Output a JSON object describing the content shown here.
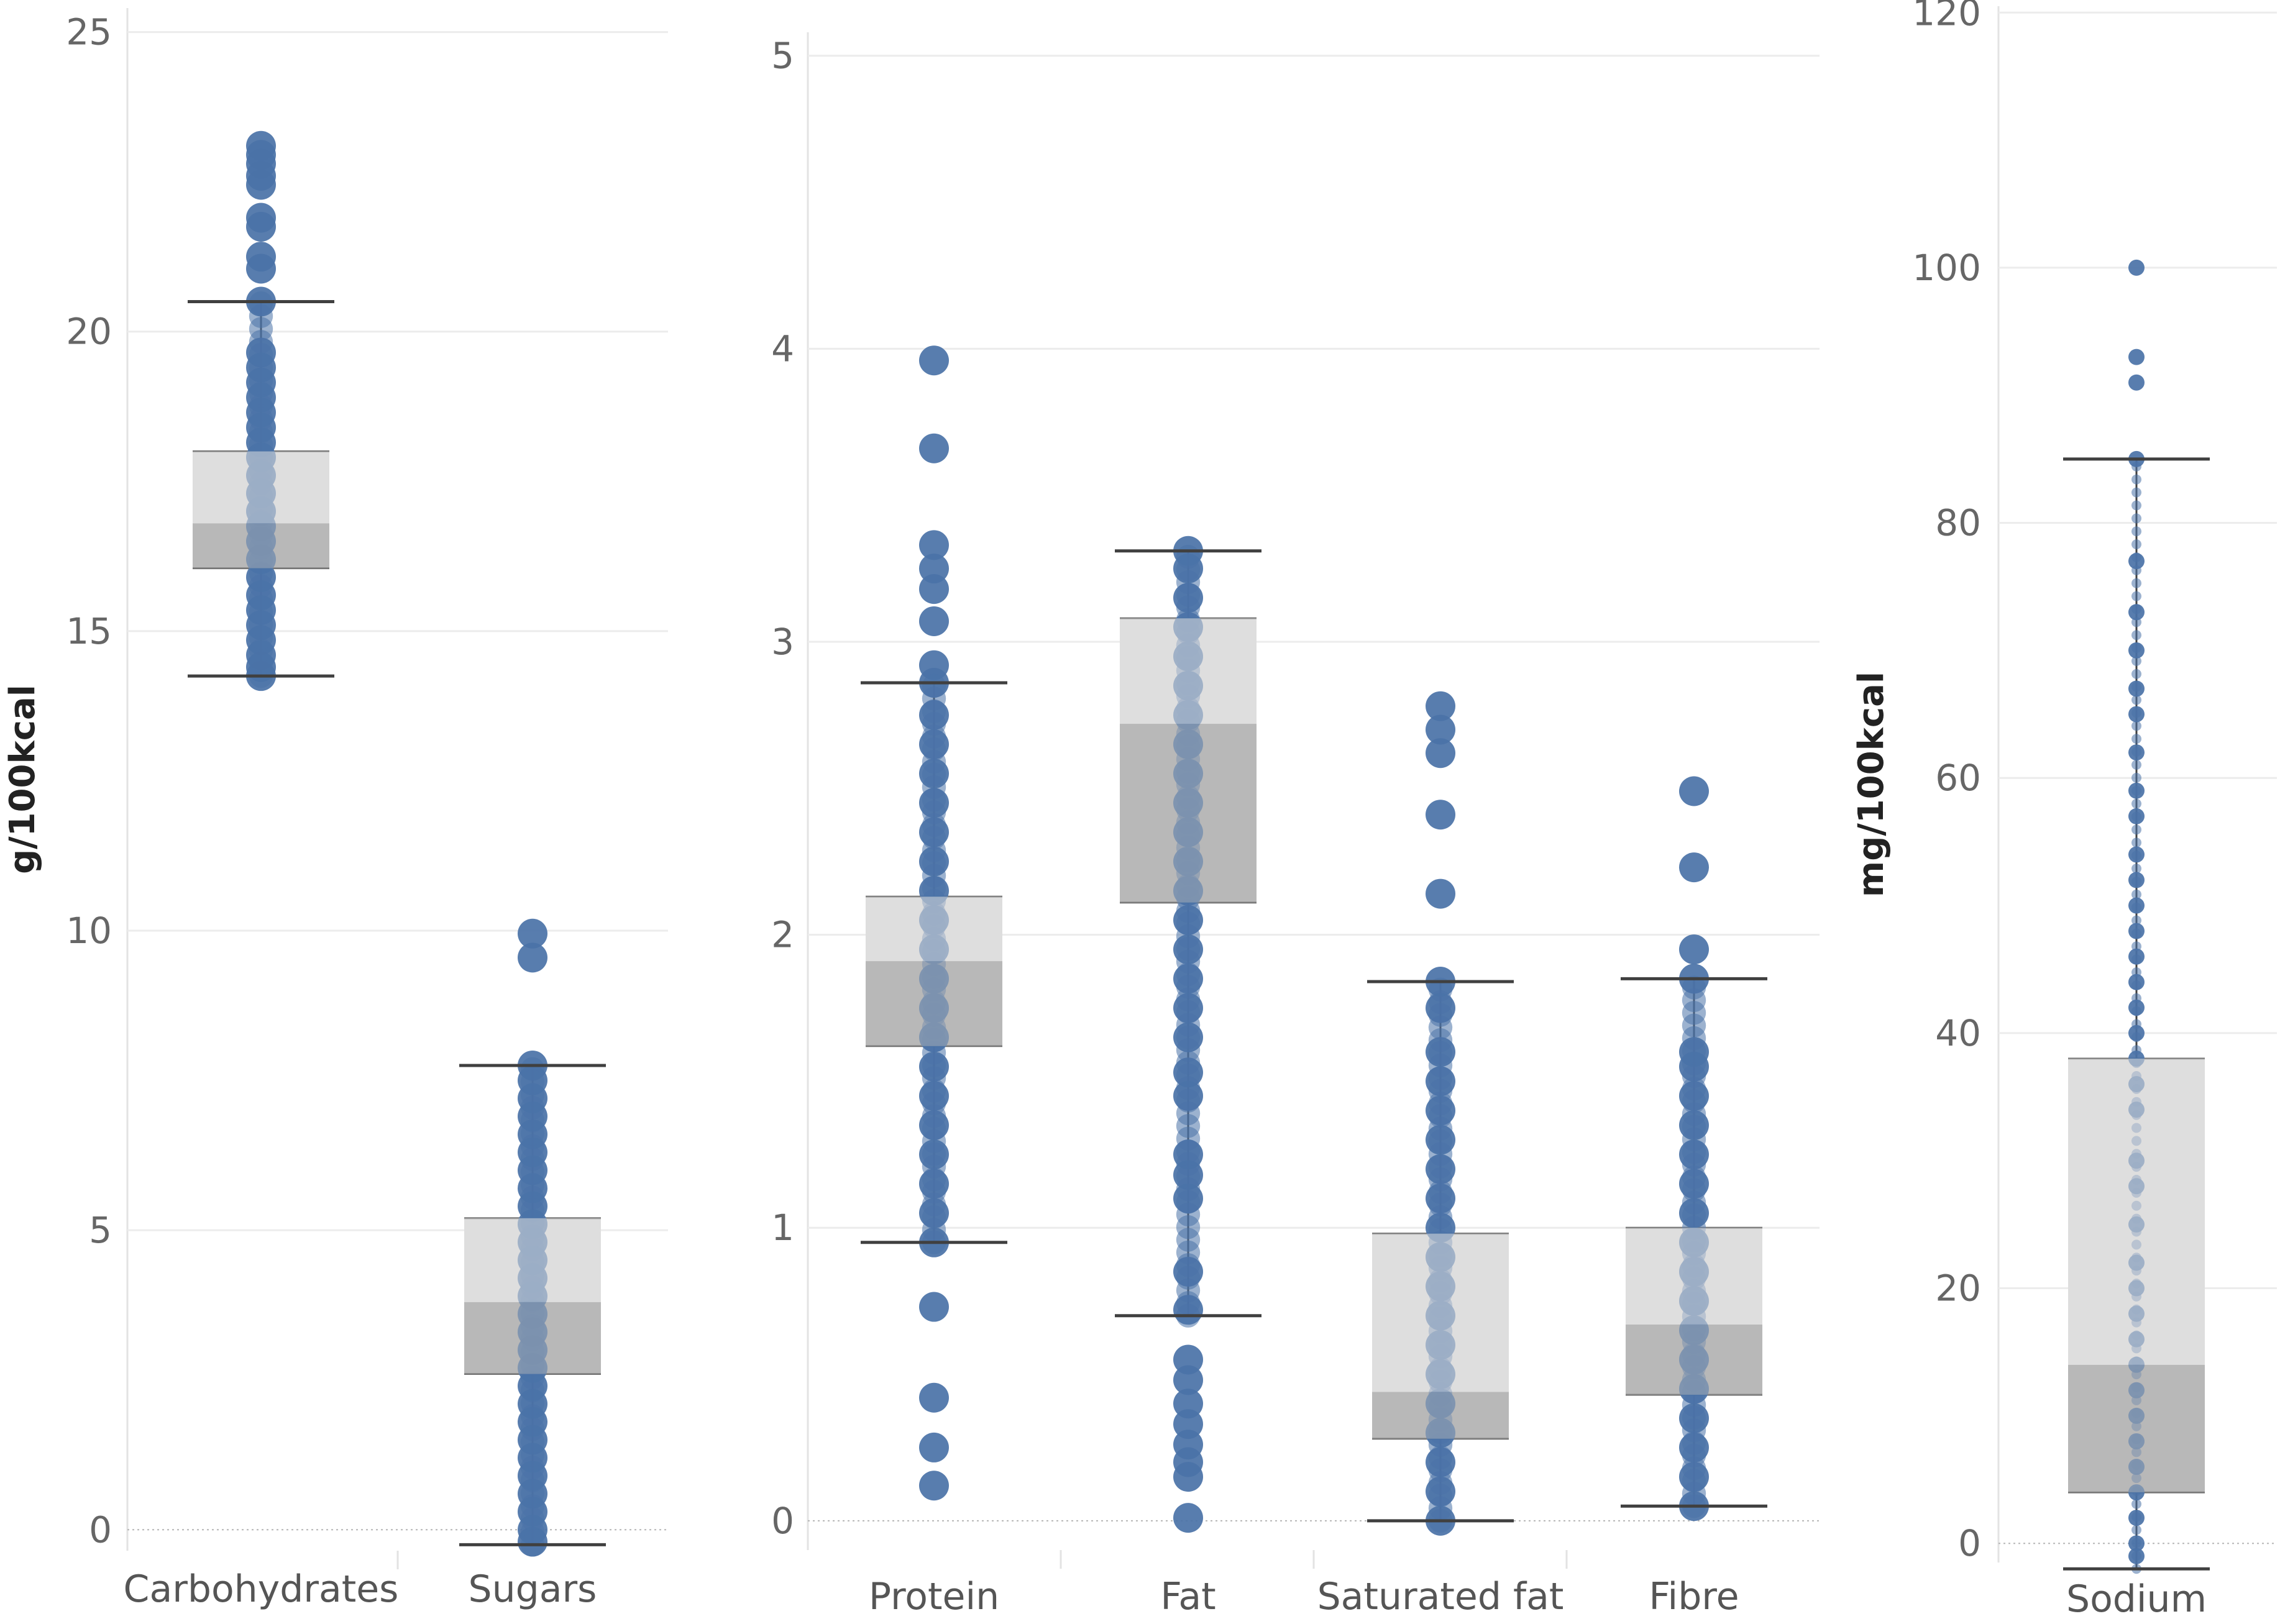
{
  "chart_data": [
    {
      "type": "boxplot",
      "id": "panel-g-left",
      "ylabel": "g/100kcal",
      "ylim": [
        -0.35,
        25.4
      ],
      "yticks": [
        0,
        5,
        10,
        15,
        20,
        25
      ],
      "categories": [
        "Carbohydrates",
        "Sugars"
      ],
      "boxes": [
        {
          "name": "Carbohydrates",
          "whisker_low": 14.25,
          "q1": 16.05,
          "median": 16.8,
          "q3": 18.0,
          "whisker_high": 20.5,
          "points": [
            23.1,
            22.95,
            22.8,
            22.6,
            22.45,
            21.9,
            21.75,
            21.25,
            21.05,
            20.5,
            19.65,
            19.4,
            19.15,
            18.9,
            18.65,
            18.4,
            18.15,
            17.9,
            17.6,
            17.3,
            17.0,
            16.75,
            16.5,
            16.2,
            15.9,
            15.6,
            15.35,
            15.1,
            14.85,
            14.6,
            14.4,
            14.25
          ]
        },
        {
          "name": "Sugars",
          "whisker_low": -0.25,
          "q1": 2.6,
          "median": 3.8,
          "q3": 5.2,
          "whisker_high": 7.75,
          "points": [
            9.95,
            9.55,
            7.75,
            7.5,
            7.2,
            6.9,
            6.6,
            6.3,
            6.0,
            5.7,
            5.4,
            5.1,
            4.8,
            4.5,
            4.2,
            3.9,
            3.6,
            3.3,
            3.0,
            2.7,
            2.4,
            2.1,
            1.8,
            1.5,
            1.2,
            0.9,
            0.6,
            0.3,
            0.0,
            -0.2
          ]
        }
      ]
    },
    {
      "type": "boxplot",
      "id": "panel-g-middle",
      "ylabel": "",
      "ylim": [
        -0.1,
        5.08
      ],
      "yticks": [
        0,
        1,
        2,
        3,
        4,
        5
      ],
      "categories": [
        "Protein",
        "Fat",
        "Saturated fat",
        "Fibre"
      ],
      "boxes": [
        {
          "name": "Protein",
          "whisker_low": 0.95,
          "q1": 1.62,
          "median": 1.91,
          "q3": 2.13,
          "whisker_high": 2.86,
          "points": [
            3.96,
            3.66,
            3.33,
            3.25,
            3.18,
            3.07,
            2.92,
            2.86,
            2.75,
            2.65,
            2.55,
            2.45,
            2.35,
            2.25,
            2.15,
            2.05,
            1.95,
            1.85,
            1.75,
            1.65,
            1.55,
            1.45,
            1.35,
            1.25,
            1.15,
            1.05,
            0.95,
            0.73,
            0.42,
            0.25,
            0.12
          ]
        },
        {
          "name": "Fat",
          "whisker_low": 0.7,
          "q1": 2.11,
          "median": 2.72,
          "q3": 3.08,
          "whisker_high": 3.31,
          "points": [
            3.31,
            3.25,
            3.15,
            3.05,
            2.95,
            2.85,
            2.75,
            2.65,
            2.55,
            2.45,
            2.35,
            2.25,
            2.15,
            2.05,
            1.95,
            1.85,
            1.75,
            1.65,
            1.53,
            1.45,
            1.25,
            1.18,
            1.1,
            0.85,
            0.72,
            0.55,
            0.48,
            0.4,
            0.33,
            0.26,
            0.2,
            0.15,
            0.01
          ]
        },
        {
          "name": "Saturated fat",
          "whisker_low": 0.0,
          "q1": 0.28,
          "median": 0.44,
          "q3": 0.98,
          "whisker_high": 1.84,
          "points": [
            2.78,
            2.7,
            2.62,
            2.41,
            2.14,
            1.84,
            1.75,
            1.6,
            1.5,
            1.4,
            1.3,
            1.2,
            1.1,
            1.0,
            0.9,
            0.8,
            0.7,
            0.6,
            0.5,
            0.4,
            0.3,
            0.2,
            0.1,
            0.0
          ]
        },
        {
          "name": "Fibre",
          "whisker_low": 0.05,
          "q1": 0.43,
          "median": 0.67,
          "q3": 1.0,
          "whisker_high": 1.85,
          "points": [
            2.49,
            2.23,
            1.95,
            1.85,
            1.6,
            1.55,
            1.45,
            1.35,
            1.25,
            1.15,
            1.05,
            0.95,
            0.85,
            0.75,
            0.65,
            0.55,
            0.45,
            0.35,
            0.25,
            0.15,
            0.05
          ]
        }
      ]
    },
    {
      "type": "boxplot",
      "id": "panel-mg-right",
      "ylabel": "mg/100kcal",
      "ylim": [
        -1.5,
        120.5
      ],
      "yticks": [
        0,
        20,
        40,
        60,
        80,
        100,
        120
      ],
      "categories": [
        "Sodium"
      ],
      "boxes": [
        {
          "name": "Sodium",
          "whisker_low": -2.0,
          "q1": 4.0,
          "median": 14.0,
          "q3": 38.0,
          "whisker_high": 85.0,
          "points": [
            100,
            93,
            91,
            85,
            77,
            73,
            70,
            67,
            65,
            62,
            59,
            57,
            54,
            52,
            50,
            48,
            46,
            44,
            42,
            40,
            38,
            36,
            34,
            30,
            28,
            25,
            22,
            20,
            18,
            16,
            14,
            12,
            10,
            8,
            6,
            4,
            2,
            0,
            -1
          ]
        }
      ]
    }
  ]
}
